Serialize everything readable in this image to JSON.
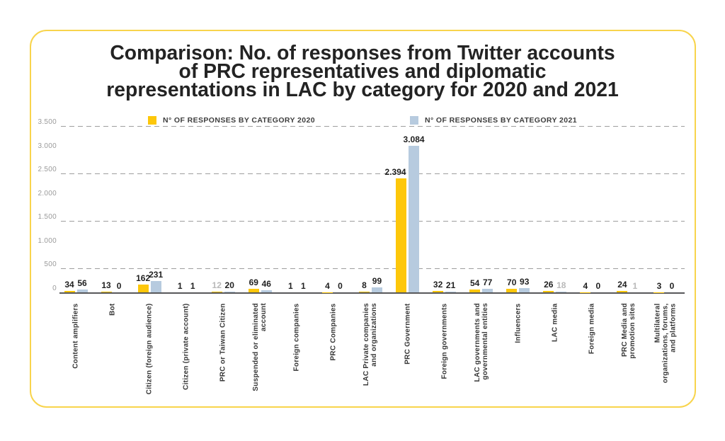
{
  "chart_data": {
    "type": "bar",
    "title": "Comparison: No. of responses from Twitter accounts of PRC representatives and diplomatic representations in LAC by category for 2020 and 2021",
    "title_lines": [
      "Comparison: No. of responses from Twitter accounts",
      "of PRC representatives and diplomatic",
      "representations in LAC by category for 2020 and 2021"
    ],
    "legend_position": "top",
    "ylim": [
      0,
      3500
    ],
    "y_ticks": [
      "0",
      "500",
      "1.000",
      "1.500",
      "2.000",
      "2.500",
      "3.000",
      "3.500"
    ],
    "grid_values": [
      500,
      1500,
      2500,
      3500
    ],
    "categories": [
      "Content amplifiers",
      "Bot",
      "Citizen (foreign audience)",
      "Citizen (private account)",
      "PRC or Taiwan Citizen",
      "Suspended or eliminated account",
      "Foreign companies",
      "PRC Companies",
      "LAC Private companies and organizations",
      "PRC Government",
      "Foreign governments",
      "LAC governments and governmental entities",
      "Influencers",
      "LAC media",
      "Foreign media",
      "PRC Media and promotion sites",
      "Multilateral organizations, forums, and platforms"
    ],
    "category_lines": [
      [
        "Content amplifiers"
      ],
      [
        "Bot"
      ],
      [
        "Citizen (foreign audience)"
      ],
      [
        "Citizen (private account)"
      ],
      [
        "PRC or Taiwan Citizen"
      ],
      [
        "Suspended or eliminated",
        "account"
      ],
      [
        "Foreign companies"
      ],
      [
        "PRC Companies"
      ],
      [
        "LAC Private companies",
        "and organizations"
      ],
      [
        "PRC Government"
      ],
      [
        "Foreign governments"
      ],
      [
        "LAC governments and",
        "governmental entities"
      ],
      [
        "Influencers"
      ],
      [
        "LAC media"
      ],
      [
        "Foreign media"
      ],
      [
        "PRC Media and",
        "promotion sites"
      ],
      [
        "Multilateral",
        "organizations, forums,",
        "and platforms"
      ]
    ],
    "series": [
      {
        "name": "N° OF RESPONSES BY CATEGORY 2020",
        "color": "#FDC70A",
        "values": [
          34,
          13,
          162,
          1,
          12,
          69,
          1,
          4,
          8,
          2394,
          32,
          54,
          70,
          26,
          4,
          24,
          3
        ],
        "labels": [
          "34",
          "13",
          "162",
          "1",
          "12",
          "69",
          "1",
          "4",
          "8",
          "2.394",
          "32",
          "54",
          "70",
          "26",
          "4",
          "24",
          "3"
        ],
        "muted_label_indices": [
          4
        ]
      },
      {
        "name": "N° OF RESPONSES BY CATEGORY 2021",
        "color": "#B7CBDF",
        "values": [
          56,
          0,
          231,
          1,
          20,
          46,
          1,
          0,
          99,
          3084,
          21,
          77,
          93,
          18,
          0,
          1,
          0
        ],
        "labels": [
          "56",
          "0",
          "231",
          "1",
          "20",
          "46",
          "1",
          "0",
          "99",
          "3.084",
          "21",
          "77",
          "93",
          "18",
          "0",
          "1",
          "0"
        ],
        "muted_label_indices": [
          13,
          15
        ]
      }
    ]
  }
}
